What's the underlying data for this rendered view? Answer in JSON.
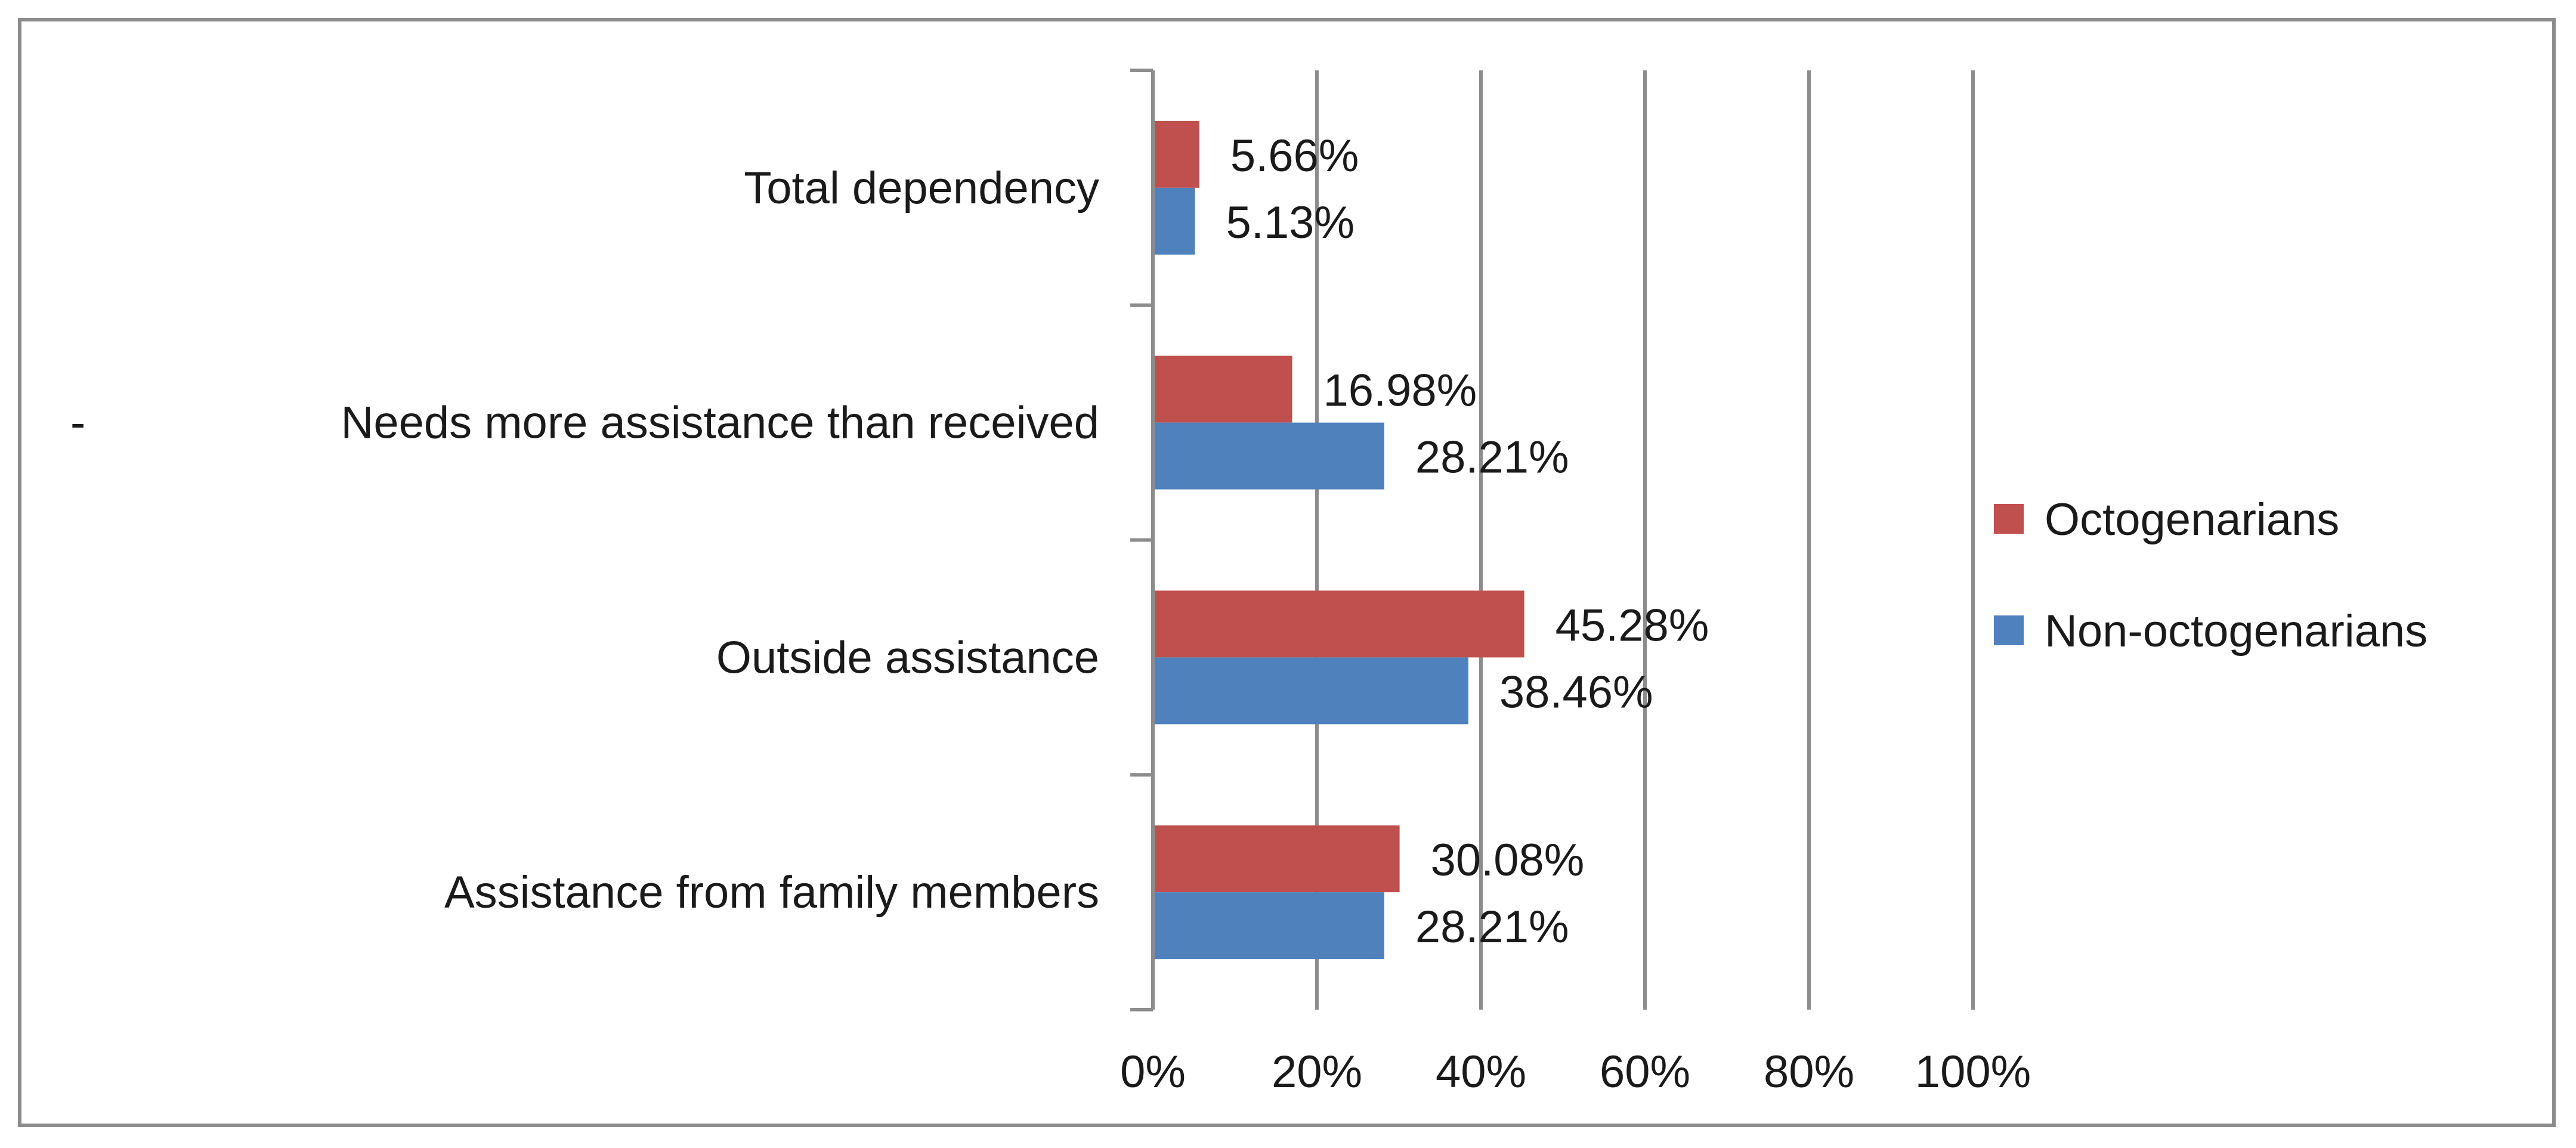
{
  "chart_data": {
    "type": "bar",
    "orientation": "horizontal",
    "title": "",
    "xlabel": "",
    "ylabel": "",
    "xlim": [
      0,
      100
    ],
    "x_ticks": [
      "0%",
      "20%",
      "40%",
      "60%",
      "80%",
      "100%"
    ],
    "x_tick_values": [
      0,
      20,
      40,
      60,
      80,
      100
    ],
    "grid": true,
    "legend_position": "right",
    "categories": [
      {
        "prefix": "",
        "label": "Total dependency"
      },
      {
        "prefix": "-",
        "label": "Needs more assistance than received"
      },
      {
        "prefix": "",
        "label": "Outside assistance"
      },
      {
        "prefix": "",
        "label": "Assistance from family members"
      }
    ],
    "series": [
      {
        "name": "Octogenarians",
        "color": "#c0504d",
        "values": [
          5.66,
          16.98,
          45.28,
          30.08
        ],
        "labels": [
          "5.66%",
          "16.98%",
          "45.28%",
          "30.08%"
        ]
      },
      {
        "name": "Non-octogenarians",
        "color": "#4f81bd",
        "values": [
          5.13,
          28.21,
          38.46,
          28.21
        ],
        "labels": [
          "5.13%",
          "28.21%",
          "38.46%",
          "28.21%"
        ]
      }
    ]
  }
}
